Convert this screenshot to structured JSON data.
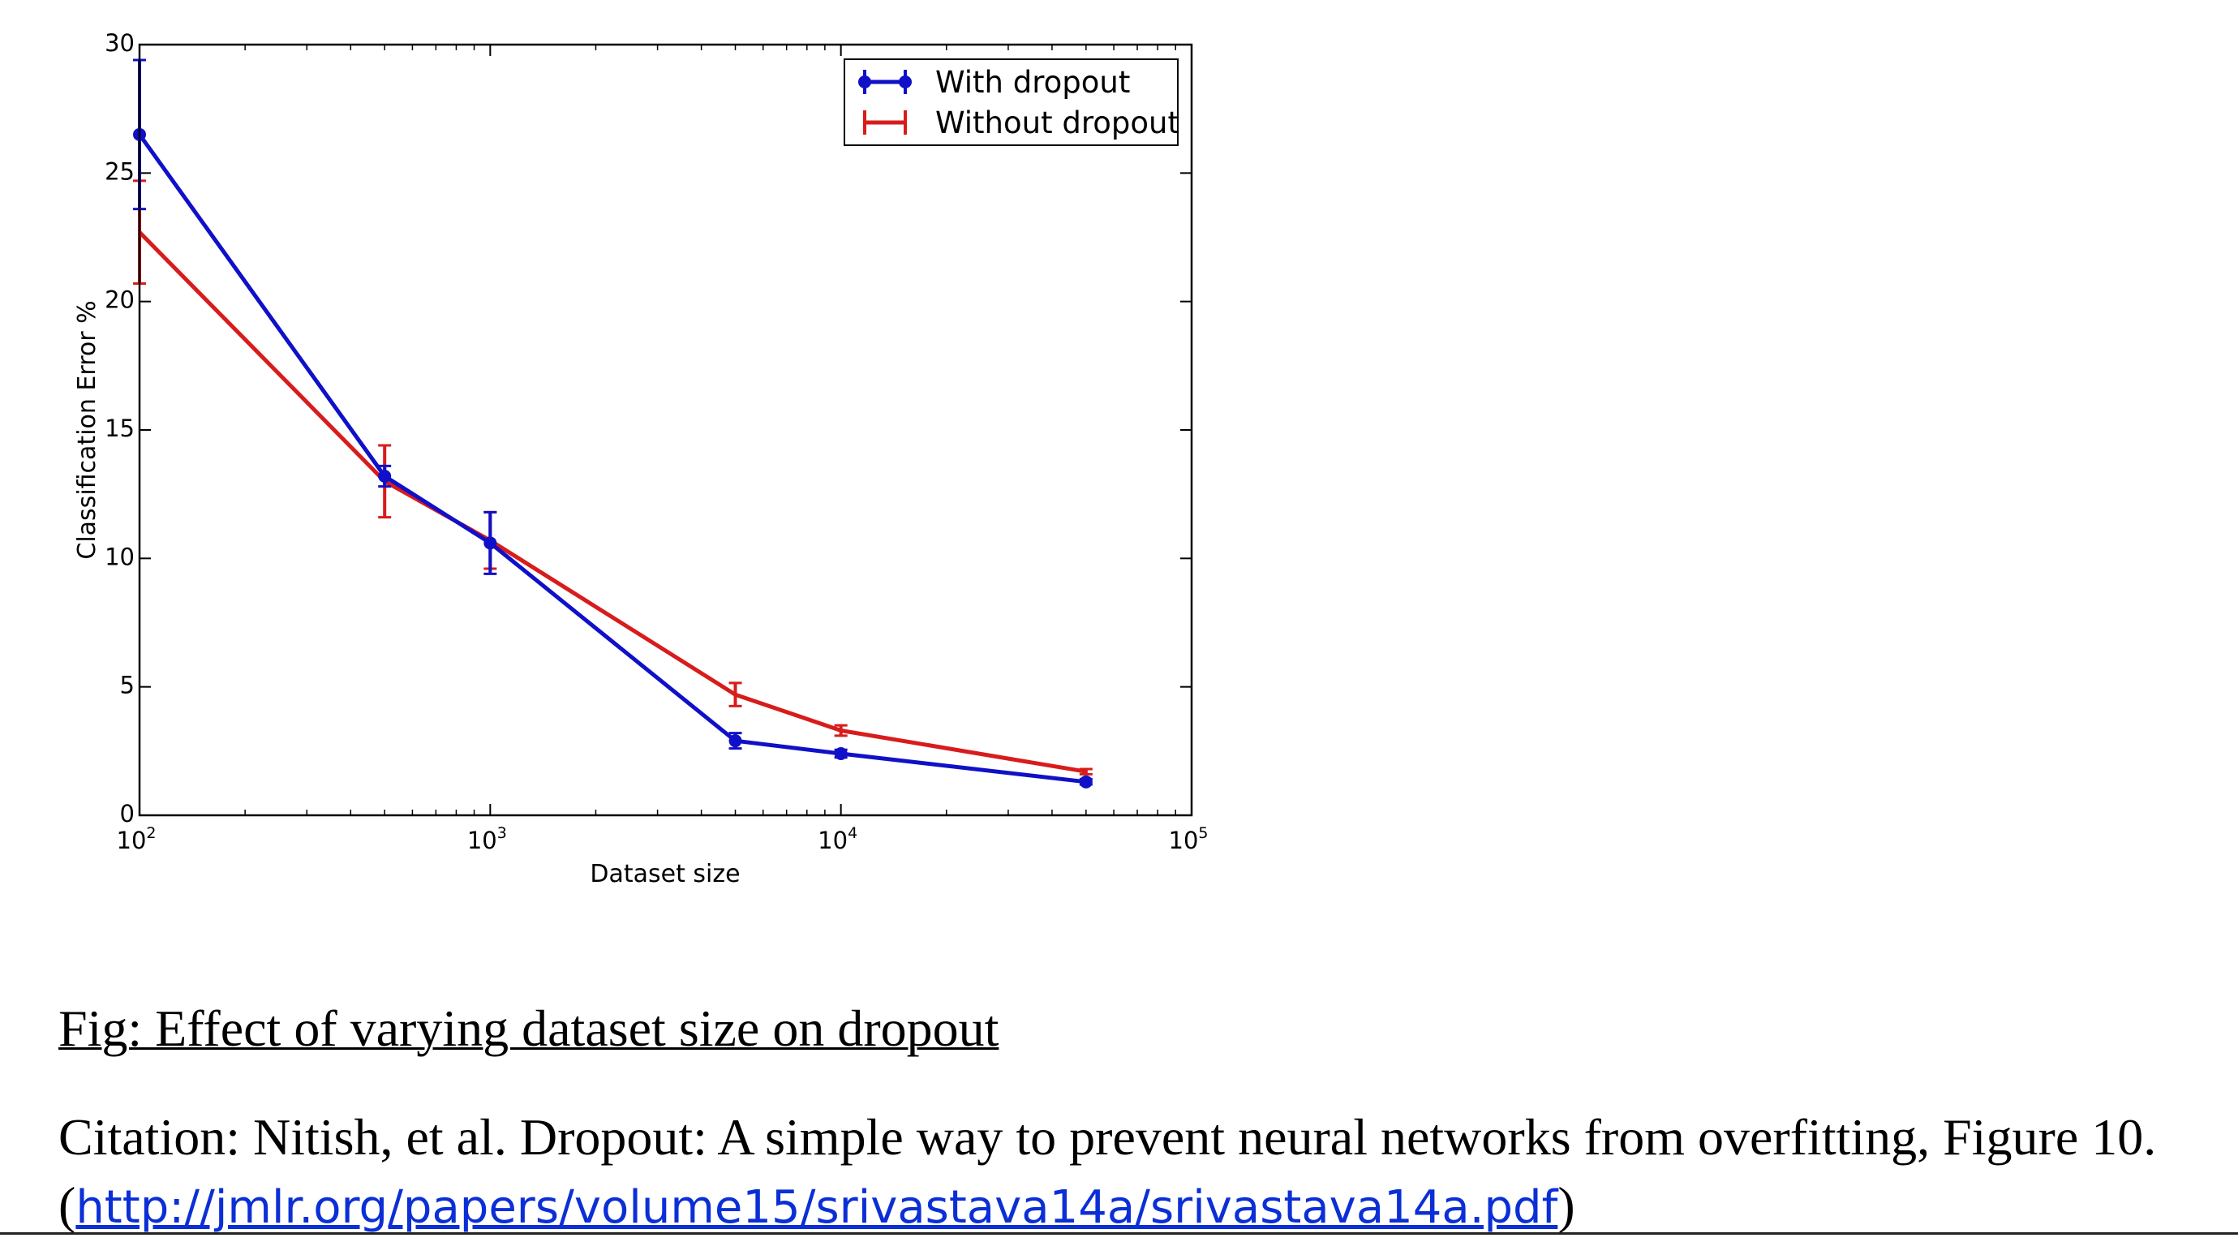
{
  "chart_data": {
    "type": "line",
    "xscale": "log",
    "xlim": [
      100,
      100000
    ],
    "ylim": [
      0,
      30
    ],
    "xlabel": "Dataset size",
    "ylabel": "Classification Error %",
    "grid": false,
    "legend_position": "top-right",
    "x_ticks": [
      {
        "base": "10",
        "exp": "2",
        "value": 100
      },
      {
        "base": "10",
        "exp": "3",
        "value": 1000
      },
      {
        "base": "10",
        "exp": "4",
        "value": 10000
      },
      {
        "base": "10",
        "exp": "5",
        "value": 100000
      }
    ],
    "y_ticks": [
      "0",
      "5",
      "10",
      "15",
      "20",
      "25",
      "30"
    ],
    "series": [
      {
        "name": "With dropout",
        "color": "#1010c8",
        "marker": "circle",
        "points": [
          {
            "x": 100,
            "y": 26.5,
            "err": 2.9
          },
          {
            "x": 500,
            "y": 13.2,
            "err": 0.4
          },
          {
            "x": 1000,
            "y": 10.6,
            "err": 1.2
          },
          {
            "x": 5000,
            "y": 2.9,
            "err": 0.3
          },
          {
            "x": 10000,
            "y": 2.4,
            "err": 0.15
          },
          {
            "x": 50000,
            "y": 1.3,
            "err": 0.1
          }
        ]
      },
      {
        "name": "Without dropout",
        "color": "#d81c1c",
        "marker": "none",
        "points": [
          {
            "x": 100,
            "y": 22.7,
            "err": 2.0
          },
          {
            "x": 500,
            "y": 13.0,
            "err": 1.4
          },
          {
            "x": 1000,
            "y": 10.7,
            "err": 1.1
          },
          {
            "x": 5000,
            "y": 4.7,
            "err": 0.45
          },
          {
            "x": 10000,
            "y": 3.3,
            "err": 0.2
          },
          {
            "x": 50000,
            "y": 1.7,
            "err": 0.1
          }
        ]
      }
    ]
  },
  "caption": {
    "title": "Fig: Effect of varying dataset size on dropout",
    "citation_text": "Citation: Nitish, et al. Dropout: A simple way to prevent neural networks from overfitting, Figure 10. (",
    "citation_link": "http://jmlr.org/papers/volume15/srivastava14a/srivastava14a.pdf",
    "citation_close": ")"
  }
}
